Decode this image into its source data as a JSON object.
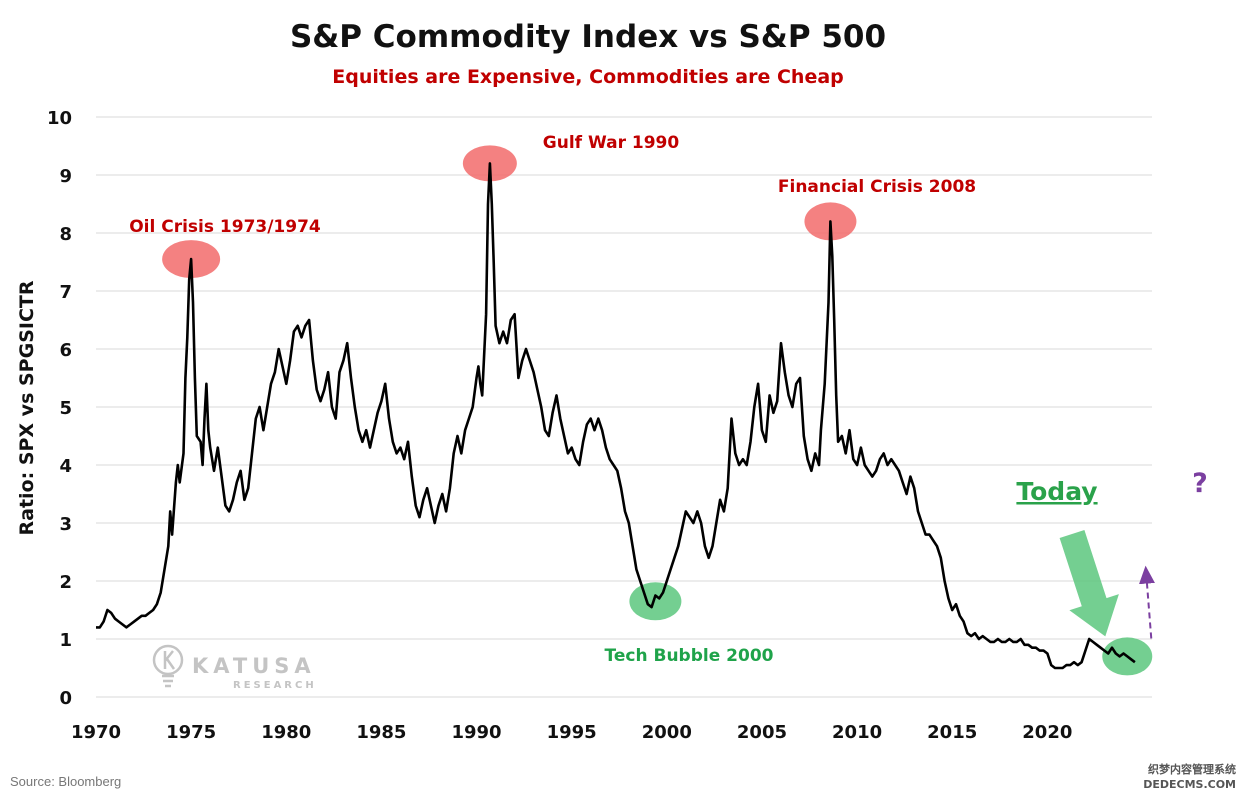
{
  "chart_data": {
    "type": "line",
    "title": "S&P Commodity Index vs S&P 500",
    "subtitle": "Equities are Expensive, Commodities are Cheap",
    "ylabel": "Ratio: SPX vs SPGSICTR",
    "xlabel": "",
    "xlim": [
      1970,
      2025.5
    ],
    "ylim": [
      0,
      10
    ],
    "x_ticks": [
      1970,
      1975,
      1980,
      1985,
      1990,
      1995,
      2000,
      2005,
      2010,
      2015,
      2020
    ],
    "y_ticks": [
      0,
      1,
      2,
      3,
      4,
      5,
      6,
      7,
      8,
      9,
      10
    ],
    "grid": "horizontal",
    "legend": "none",
    "series": [
      {
        "color": "#000000",
        "points": [
          [
            1970.0,
            1.2
          ],
          [
            1970.2,
            1.2
          ],
          [
            1970.4,
            1.3
          ],
          [
            1970.6,
            1.5
          ],
          [
            1970.8,
            1.45
          ],
          [
            1971.0,
            1.35
          ],
          [
            1971.2,
            1.3
          ],
          [
            1971.4,
            1.25
          ],
          [
            1971.6,
            1.2
          ],
          [
            1971.8,
            1.25
          ],
          [
            1972.0,
            1.3
          ],
          [
            1972.2,
            1.35
          ],
          [
            1972.4,
            1.4
          ],
          [
            1972.6,
            1.4
          ],
          [
            1972.8,
            1.45
          ],
          [
            1973.0,
            1.5
          ],
          [
            1973.2,
            1.6
          ],
          [
            1973.4,
            1.8
          ],
          [
            1973.6,
            2.2
          ],
          [
            1973.8,
            2.6
          ],
          [
            1973.9,
            3.2
          ],
          [
            1974.0,
            2.8
          ],
          [
            1974.2,
            3.7
          ],
          [
            1974.3,
            4.0
          ],
          [
            1974.4,
            3.7
          ],
          [
            1974.6,
            4.2
          ],
          [
            1974.7,
            5.5
          ],
          [
            1974.8,
            6.2
          ],
          [
            1974.9,
            7.2
          ],
          [
            1975.0,
            7.55
          ],
          [
            1975.1,
            6.8
          ],
          [
            1975.2,
            5.5
          ],
          [
            1975.3,
            4.5
          ],
          [
            1975.5,
            4.4
          ],
          [
            1975.6,
            4.0
          ],
          [
            1975.7,
            4.8
          ],
          [
            1975.8,
            5.4
          ],
          [
            1975.9,
            4.6
          ],
          [
            1976.0,
            4.3
          ],
          [
            1976.2,
            3.9
          ],
          [
            1976.4,
            4.3
          ],
          [
            1976.6,
            3.8
          ],
          [
            1976.8,
            3.3
          ],
          [
            1977.0,
            3.2
          ],
          [
            1977.2,
            3.4
          ],
          [
            1977.4,
            3.7
          ],
          [
            1977.6,
            3.9
          ],
          [
            1977.8,
            3.4
          ],
          [
            1978.0,
            3.6
          ],
          [
            1978.2,
            4.2
          ],
          [
            1978.4,
            4.8
          ],
          [
            1978.6,
            5.0
          ],
          [
            1978.8,
            4.6
          ],
          [
            1979.0,
            5.0
          ],
          [
            1979.2,
            5.4
          ],
          [
            1979.4,
            5.6
          ],
          [
            1979.6,
            6.0
          ],
          [
            1979.8,
            5.7
          ],
          [
            1980.0,
            5.4
          ],
          [
            1980.2,
            5.8
          ],
          [
            1980.4,
            6.3
          ],
          [
            1980.6,
            6.4
          ],
          [
            1980.8,
            6.2
          ],
          [
            1981.0,
            6.4
          ],
          [
            1981.2,
            6.5
          ],
          [
            1981.4,
            5.8
          ],
          [
            1981.6,
            5.3
          ],
          [
            1981.8,
            5.1
          ],
          [
            1982.0,
            5.3
          ],
          [
            1982.2,
            5.6
          ],
          [
            1982.4,
            5.0
          ],
          [
            1982.6,
            4.8
          ],
          [
            1982.8,
            5.6
          ],
          [
            1983.0,
            5.8
          ],
          [
            1983.2,
            6.1
          ],
          [
            1983.4,
            5.5
          ],
          [
            1983.6,
            5.0
          ],
          [
            1983.8,
            4.6
          ],
          [
            1984.0,
            4.4
          ],
          [
            1984.2,
            4.6
          ],
          [
            1984.4,
            4.3
          ],
          [
            1984.6,
            4.6
          ],
          [
            1984.8,
            4.9
          ],
          [
            1985.0,
            5.1
          ],
          [
            1985.2,
            5.4
          ],
          [
            1985.4,
            4.8
          ],
          [
            1985.6,
            4.4
          ],
          [
            1985.8,
            4.2
          ],
          [
            1986.0,
            4.3
          ],
          [
            1986.2,
            4.1
          ],
          [
            1986.4,
            4.4
          ],
          [
            1986.6,
            3.8
          ],
          [
            1986.8,
            3.3
          ],
          [
            1987.0,
            3.1
          ],
          [
            1987.2,
            3.4
          ],
          [
            1987.4,
            3.6
          ],
          [
            1987.6,
            3.3
          ],
          [
            1987.8,
            3.0
          ],
          [
            1988.0,
            3.3
          ],
          [
            1988.2,
            3.5
          ],
          [
            1988.4,
            3.2
          ],
          [
            1988.6,
            3.6
          ],
          [
            1988.8,
            4.2
          ],
          [
            1989.0,
            4.5
          ],
          [
            1989.2,
            4.2
          ],
          [
            1989.4,
            4.6
          ],
          [
            1989.6,
            4.8
          ],
          [
            1989.8,
            5.0
          ],
          [
            1990.0,
            5.5
          ],
          [
            1990.1,
            5.7
          ],
          [
            1990.2,
            5.4
          ],
          [
            1990.3,
            5.2
          ],
          [
            1990.5,
            6.6
          ],
          [
            1990.6,
            8.5
          ],
          [
            1990.7,
            9.2
          ],
          [
            1990.8,
            8.5
          ],
          [
            1990.9,
            7.5
          ],
          [
            1991.0,
            6.4
          ],
          [
            1991.2,
            6.1
          ],
          [
            1991.4,
            6.3
          ],
          [
            1991.6,
            6.1
          ],
          [
            1991.8,
            6.5
          ],
          [
            1992.0,
            6.6
          ],
          [
            1992.2,
            5.5
          ],
          [
            1992.4,
            5.8
          ],
          [
            1992.6,
            6.0
          ],
          [
            1992.8,
            5.8
          ],
          [
            1993.0,
            5.6
          ],
          [
            1993.2,
            5.3
          ],
          [
            1993.4,
            5.0
          ],
          [
            1993.6,
            4.6
          ],
          [
            1993.8,
            4.5
          ],
          [
            1994.0,
            4.9
          ],
          [
            1994.2,
            5.2
          ],
          [
            1994.4,
            4.8
          ],
          [
            1994.6,
            4.5
          ],
          [
            1994.8,
            4.2
          ],
          [
            1995.0,
            4.3
          ],
          [
            1995.2,
            4.1
          ],
          [
            1995.4,
            4.0
          ],
          [
            1995.6,
            4.4
          ],
          [
            1995.8,
            4.7
          ],
          [
            1996.0,
            4.8
          ],
          [
            1996.2,
            4.6
          ],
          [
            1996.4,
            4.8
          ],
          [
            1996.6,
            4.6
          ],
          [
            1996.8,
            4.3
          ],
          [
            1997.0,
            4.1
          ],
          [
            1997.2,
            4.0
          ],
          [
            1997.4,
            3.9
          ],
          [
            1997.6,
            3.6
          ],
          [
            1997.8,
            3.2
          ],
          [
            1998.0,
            3.0
          ],
          [
            1998.2,
            2.6
          ],
          [
            1998.4,
            2.2
          ],
          [
            1998.6,
            2.0
          ],
          [
            1998.8,
            1.8
          ],
          [
            1999.0,
            1.6
          ],
          [
            1999.2,
            1.55
          ],
          [
            1999.4,
            1.75
          ],
          [
            1999.6,
            1.7
          ],
          [
            1999.8,
            1.8
          ],
          [
            2000.0,
            2.0
          ],
          [
            2000.2,
            2.2
          ],
          [
            2000.4,
            2.4
          ],
          [
            2000.6,
            2.6
          ],
          [
            2000.8,
            2.9
          ],
          [
            2001.0,
            3.2
          ],
          [
            2001.2,
            3.1
          ],
          [
            2001.4,
            3.0
          ],
          [
            2001.6,
            3.2
          ],
          [
            2001.8,
            3.0
          ],
          [
            2002.0,
            2.6
          ],
          [
            2002.2,
            2.4
          ],
          [
            2002.4,
            2.6
          ],
          [
            2002.6,
            3.0
          ],
          [
            2002.8,
            3.4
          ],
          [
            2003.0,
            3.2
          ],
          [
            2003.2,
            3.6
          ],
          [
            2003.4,
            4.8
          ],
          [
            2003.6,
            4.2
          ],
          [
            2003.8,
            4.0
          ],
          [
            2004.0,
            4.1
          ],
          [
            2004.2,
            4.0
          ],
          [
            2004.4,
            4.4
          ],
          [
            2004.6,
            5.0
          ],
          [
            2004.8,
            5.4
          ],
          [
            2005.0,
            4.6
          ],
          [
            2005.2,
            4.4
          ],
          [
            2005.4,
            5.2
          ],
          [
            2005.6,
            4.9
          ],
          [
            2005.8,
            5.1
          ],
          [
            2006.0,
            6.1
          ],
          [
            2006.2,
            5.6
          ],
          [
            2006.4,
            5.2
          ],
          [
            2006.6,
            5.0
          ],
          [
            2006.8,
            5.4
          ],
          [
            2007.0,
            5.5
          ],
          [
            2007.2,
            4.5
          ],
          [
            2007.4,
            4.1
          ],
          [
            2007.6,
            3.9
          ],
          [
            2007.8,
            4.2
          ],
          [
            2008.0,
            4.0
          ],
          [
            2008.1,
            4.6
          ],
          [
            2008.2,
            5.0
          ],
          [
            2008.3,
            5.4
          ],
          [
            2008.5,
            6.8
          ],
          [
            2008.6,
            8.2
          ],
          [
            2008.7,
            7.6
          ],
          [
            2008.8,
            6.5
          ],
          [
            2008.9,
            5.2
          ],
          [
            2009.0,
            4.4
          ],
          [
            2009.2,
            4.5
          ],
          [
            2009.4,
            4.2
          ],
          [
            2009.6,
            4.6
          ],
          [
            2009.8,
            4.1
          ],
          [
            2010.0,
            4.0
          ],
          [
            2010.2,
            4.3
          ],
          [
            2010.4,
            4.0
          ],
          [
            2010.6,
            3.9
          ],
          [
            2010.8,
            3.8
          ],
          [
            2011.0,
            3.9
          ],
          [
            2011.2,
            4.1
          ],
          [
            2011.4,
            4.2
          ],
          [
            2011.6,
            4.0
          ],
          [
            2011.8,
            4.1
          ],
          [
            2012.0,
            4.0
          ],
          [
            2012.2,
            3.9
          ],
          [
            2012.4,
            3.7
          ],
          [
            2012.6,
            3.5
          ],
          [
            2012.8,
            3.8
          ],
          [
            2013.0,
            3.6
          ],
          [
            2013.2,
            3.2
          ],
          [
            2013.4,
            3.0
          ],
          [
            2013.6,
            2.8
          ],
          [
            2013.8,
            2.8
          ],
          [
            2014.0,
            2.7
          ],
          [
            2014.2,
            2.6
          ],
          [
            2014.4,
            2.4
          ],
          [
            2014.6,
            2.0
          ],
          [
            2014.8,
            1.7
          ],
          [
            2015.0,
            1.5
          ],
          [
            2015.2,
            1.6
          ],
          [
            2015.4,
            1.4
          ],
          [
            2015.6,
            1.3
          ],
          [
            2015.8,
            1.1
          ],
          [
            2016.0,
            1.05
          ],
          [
            2016.2,
            1.1
          ],
          [
            2016.4,
            1.0
          ],
          [
            2016.6,
            1.05
          ],
          [
            2016.8,
            1.0
          ],
          [
            2017.0,
            0.95
          ],
          [
            2017.2,
            0.95
          ],
          [
            2017.4,
            1.0
          ],
          [
            2017.6,
            0.95
          ],
          [
            2017.8,
            0.95
          ],
          [
            2018.0,
            1.0
          ],
          [
            2018.2,
            0.95
          ],
          [
            2018.4,
            0.95
          ],
          [
            2018.6,
            1.0
          ],
          [
            2018.8,
            0.9
          ],
          [
            2019.0,
            0.9
          ],
          [
            2019.2,
            0.85
          ],
          [
            2019.4,
            0.85
          ],
          [
            2019.6,
            0.8
          ],
          [
            2019.8,
            0.8
          ],
          [
            2020.0,
            0.75
          ],
          [
            2020.2,
            0.55
          ],
          [
            2020.4,
            0.5
          ],
          [
            2020.6,
            0.5
          ],
          [
            2020.8,
            0.5
          ],
          [
            2021.0,
            0.55
          ],
          [
            2021.2,
            0.55
          ],
          [
            2021.4,
            0.6
          ],
          [
            2021.6,
            0.55
          ],
          [
            2021.8,
            0.6
          ],
          [
            2022.0,
            0.8
          ],
          [
            2022.2,
            1.0
          ],
          [
            2022.4,
            0.95
          ],
          [
            2022.6,
            0.9
          ],
          [
            2022.8,
            0.85
          ],
          [
            2023.0,
            0.8
          ],
          [
            2023.2,
            0.75
          ],
          [
            2023.4,
            0.85
          ],
          [
            2023.6,
            0.75
          ],
          [
            2023.8,
            0.7
          ],
          [
            2024.0,
            0.75
          ],
          [
            2024.2,
            0.7
          ],
          [
            2024.4,
            0.65
          ],
          [
            2024.6,
            0.6
          ]
        ]
      }
    ],
    "annotations": [
      {
        "text": "Oil Crisis 1973/1974",
        "x": 1975.0,
        "y": 7.55,
        "color": "red"
      },
      {
        "text": "Gulf War 1990",
        "x": 1990.7,
        "y": 9.2,
        "color": "red"
      },
      {
        "text": "Financial Crisis 2008",
        "x": 2008.6,
        "y": 8.2,
        "color": "red"
      },
      {
        "text": "Tech Bubble 2000",
        "x": 1999.4,
        "y": 1.65,
        "color": "green"
      },
      {
        "text": "Today",
        "x": 2024.2,
        "y": 0.7,
        "color": "green"
      },
      {
        "text": "?",
        "x": 2025.3,
        "y": 2.3,
        "color": "purple"
      }
    ]
  },
  "logo": {
    "name": "KATUSA",
    "sub": "RESEARCH",
    "icon": "lightbulb-k-icon"
  },
  "source": "Source: Bloomberg",
  "watermark": {
    "line1": "织梦内容管理系统",
    "line2": "DEDECMS.COM"
  },
  "colors": {
    "line": "#000000",
    "peak": "#f26b6b",
    "trough": "#5cc77e",
    "arrow": "#5cc77e",
    "forecast": "#7b3fa0",
    "grid": "#d9d9d9"
  }
}
